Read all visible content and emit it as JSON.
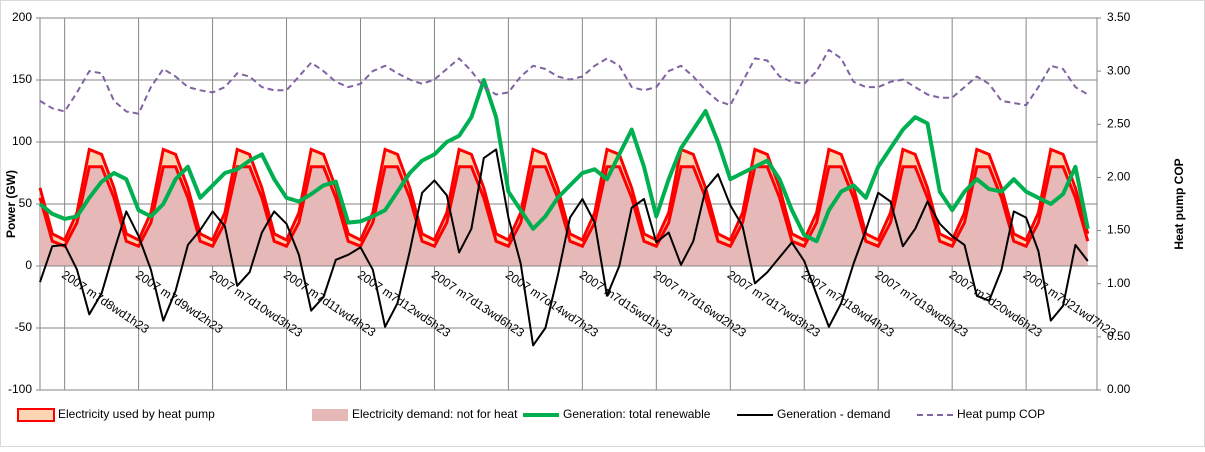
{
  "chart_data": {
    "type": "combo",
    "y_label": "Power (GW)",
    "y2_label": "Heat pump COP",
    "grid": true,
    "x": [
      0,
      4,
      8,
      12,
      16,
      20,
      24,
      28,
      32,
      36,
      40,
      44,
      48,
      52,
      56,
      60,
      64,
      68,
      72,
      76,
      80,
      84,
      88,
      92,
      96,
      100,
      104,
      108,
      112,
      116,
      120,
      124,
      128,
      132,
      136,
      140,
      144,
      148,
      152,
      156,
      160,
      164,
      168,
      172,
      176,
      180,
      184,
      188,
      192,
      196,
      200,
      204,
      208,
      212,
      216,
      220,
      224,
      228,
      232,
      236,
      240,
      244,
      248,
      252,
      256,
      260,
      264,
      268,
      272,
      276,
      280,
      284,
      288,
      292,
      296,
      300,
      304,
      308,
      312,
      316,
      320,
      324,
      328,
      332,
      336,
      340
    ],
    "xlim": [
      0,
      343
    ],
    "xticks": [
      {
        "value": 8,
        "label": "2007 m7d8wd1h23"
      },
      {
        "value": 32,
        "label": "2007 m7d9wd2h23"
      },
      {
        "value": 56,
        "label": "2007 m7d10wd3h23"
      },
      {
        "value": 80,
        "label": "2007 m7d11wd4h23"
      },
      {
        "value": 104,
        "label": "2007 m7d12wd5h23"
      },
      {
        "value": 128,
        "label": "2007 m7d13wd6h23"
      },
      {
        "value": 152,
        "label": "2007 m7d14wd7h23"
      },
      {
        "value": 176,
        "label": "2007 m7d15wd1h23"
      },
      {
        "value": 200,
        "label": "2007 m7d16wd2h23"
      },
      {
        "value": 224,
        "label": "2007 m7d17wd3h23"
      },
      {
        "value": 248,
        "label": "2007 m7d18wd4h23"
      },
      {
        "value": 272,
        "label": "2007 m7d19wd5h23"
      },
      {
        "value": 296,
        "label": "2007 m7d20wd6h23"
      },
      {
        "value": 320,
        "label": "2007 m7d21wd7h23"
      }
    ],
    "ylim": [
      -100,
      200
    ],
    "yticks": [
      -100,
      -50,
      0,
      50,
      100,
      150,
      200
    ],
    "y2lim": [
      0,
      3.5
    ],
    "y2ticks": [
      {
        "value": 0,
        "label": "0.00"
      },
      {
        "value": 0.5,
        "label": "0.50"
      },
      {
        "value": 1,
        "label": "1.00"
      },
      {
        "value": 1.5,
        "label": "1.50"
      },
      {
        "value": 2,
        "label": "2.00"
      },
      {
        "value": 2.5,
        "label": "2.50"
      },
      {
        "value": 3,
        "label": "3.00"
      },
      {
        "value": 3.5,
        "label": "3.50"
      }
    ],
    "series": [
      {
        "name": "Electricity used by heat pump",
        "kind": "stacked-area",
        "color": "#fbd4b4",
        "edge": "#ff0000",
        "values": [
          8,
          6,
          5,
          8,
          14,
          10,
          8,
          6,
          5,
          8,
          14,
          10,
          8,
          6,
          5,
          8,
          14,
          10,
          8,
          6,
          5,
          8,
          14,
          10,
          8,
          6,
          5,
          8,
          14,
          10,
          8,
          6,
          5,
          8,
          14,
          10,
          8,
          6,
          5,
          8,
          14,
          10,
          8,
          6,
          5,
          8,
          14,
          10,
          8,
          6,
          5,
          8,
          14,
          10,
          8,
          6,
          5,
          8,
          14,
          10,
          8,
          6,
          5,
          8,
          14,
          10,
          8,
          6,
          5,
          8,
          14,
          10,
          8,
          6,
          5,
          8,
          14,
          10,
          8,
          6,
          5,
          8,
          14,
          10,
          8,
          6
        ]
      },
      {
        "name": "Electricity demand: not for heat",
        "kind": "area",
        "color": "#e6b8b7",
        "edge": "#ff0000",
        "values": [
          55,
          20,
          16,
          35,
          80,
          80,
          55,
          20,
          16,
          35,
          80,
          80,
          55,
          20,
          16,
          35,
          80,
          80,
          55,
          20,
          16,
          35,
          80,
          80,
          55,
          20,
          16,
          35,
          80,
          80,
          55,
          20,
          16,
          35,
          80,
          80,
          55,
          20,
          16,
          35,
          80,
          80,
          55,
          20,
          16,
          35,
          80,
          80,
          55,
          20,
          16,
          35,
          80,
          80,
          55,
          20,
          16,
          35,
          80,
          80,
          55,
          20,
          16,
          35,
          80,
          80,
          55,
          20,
          16,
          35,
          80,
          80,
          55,
          20,
          16,
          35,
          80,
          80,
          55,
          20,
          16,
          35,
          80,
          80,
          55,
          20
        ]
      },
      {
        "name": "Generation: total renewable",
        "kind": "line",
        "color": "#00b050",
        "width": 4,
        "values": [
          50,
          42,
          38,
          40,
          55,
          68,
          75,
          70,
          45,
          40,
          50,
          70,
          80,
          55,
          65,
          75,
          78,
          85,
          90,
          70,
          55,
          52,
          58,
          65,
          68,
          35,
          36,
          40,
          45,
          60,
          75,
          85,
          90,
          100,
          105,
          120,
          150,
          120,
          60,
          45,
          30,
          40,
          55,
          65,
          75,
          78,
          70,
          90,
          110,
          80,
          40,
          70,
          95,
          110,
          125,
          100,
          70,
          75,
          80,
          85,
          70,
          45,
          25,
          20,
          45,
          60,
          65,
          55,
          80,
          95,
          110,
          120,
          115,
          60,
          45,
          60,
          70,
          62,
          60,
          70,
          60,
          55,
          50,
          58,
          80,
          30
        ]
      },
      {
        "name": "Generation - demand",
        "kind": "line",
        "color": "#000000",
        "width": 2,
        "values": [
          -13,
          16,
          17,
          -3,
          -39,
          -22,
          12,
          44,
          24,
          -3,
          -44,
          -20,
          17,
          29,
          44,
          32,
          -16,
          -5,
          27,
          44,
          34,
          9,
          -36,
          -25,
          5,
          9,
          15,
          -3,
          -49,
          -30,
          12,
          59,
          69,
          57,
          11,
          30,
          87,
          94,
          39,
          2,
          -64,
          -50,
          -8,
          39,
          54,
          35,
          -24,
          0,
          47,
          54,
          19,
          27,
          1,
          20,
          62,
          74,
          49,
          32,
          -14,
          -5,
          7,
          19,
          4,
          -23,
          -49,
          -30,
          2,
          29,
          59,
          52,
          16,
          30,
          52,
          34,
          24,
          17,
          -24,
          -28,
          -3,
          44,
          39,
          12,
          -44,
          -32,
          17,
          4
        ]
      },
      {
        "name": "Heat pump COP",
        "kind": "line",
        "color": "#8064a2",
        "width": 2,
        "dashed": true,
        "axis": "y2",
        "values": [
          2.72,
          2.65,
          2.62,
          2.8,
          3.0,
          2.98,
          2.72,
          2.62,
          2.6,
          2.85,
          3.02,
          2.95,
          2.85,
          2.82,
          2.8,
          2.85,
          2.98,
          2.95,
          2.85,
          2.82,
          2.82,
          2.95,
          3.08,
          3.0,
          2.9,
          2.85,
          2.88,
          3.0,
          3.05,
          2.98,
          2.92,
          2.88,
          2.92,
          3.02,
          3.12,
          3.0,
          2.85,
          2.78,
          2.8,
          2.95,
          3.05,
          3.02,
          2.95,
          2.92,
          2.95,
          3.05,
          3.12,
          3.05,
          2.85,
          2.82,
          2.85,
          3.0,
          3.05,
          2.95,
          2.82,
          2.72,
          2.68,
          2.9,
          3.12,
          3.1,
          2.95,
          2.9,
          2.88,
          3.0,
          3.2,
          3.12,
          2.9,
          2.85,
          2.85,
          2.9,
          2.92,
          2.85,
          2.78,
          2.75,
          2.75,
          2.85,
          2.95,
          2.88,
          2.72,
          2.7,
          2.68,
          2.85,
          3.05,
          3.02,
          2.85,
          2.78
        ]
      }
    ]
  }
}
